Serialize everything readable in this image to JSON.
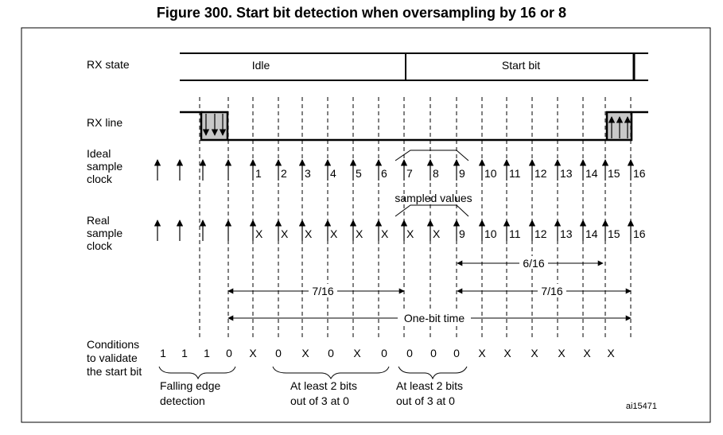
{
  "title": "Figure 300. Start bit detection when oversampling by 16 or 8",
  "reference": "ai15471",
  "row_labels": {
    "rx_state": "RX state",
    "rx_line": "RX line",
    "ideal_clock": [
      "Ideal",
      "sample",
      "clock"
    ],
    "real_clock": [
      "Real",
      "sample",
      "clock"
    ],
    "conditions": [
      "Conditions",
      "to validate",
      "the start bit"
    ]
  },
  "rx_state": {
    "idle": "Idle",
    "start_bit": "Start bit"
  },
  "ideal_ticks": [
    "1",
    "2",
    "3",
    "4",
    "5",
    "6",
    "7",
    "8",
    "9",
    "10",
    "11",
    "12",
    "13",
    "14",
    "15",
    "16"
  ],
  "real_ticks": [
    "X",
    "X",
    "X",
    "X",
    "X",
    "X",
    "X",
    "X",
    "9",
    "10",
    "11",
    "12",
    "13",
    "14",
    "15",
    "16"
  ],
  "sampled_values_label": "sampled values",
  "measurements": {
    "six_sixteenths": "6/16",
    "seven_sixteenths": "7/16",
    "one_bit_time": "One-bit time"
  },
  "condition_values": [
    "1",
    "1",
    "1",
    "0",
    "X",
    "0",
    "X",
    "0",
    "X",
    "0",
    "0",
    "0",
    "0",
    "X",
    "X",
    "X",
    "X",
    "X",
    "X"
  ],
  "notes": {
    "falling_edge": [
      "Falling edge",
      "detection"
    ],
    "at_least_a": [
      "At least 2 bits",
      "out of 3 at 0"
    ],
    "at_least_b": [
      "At least 2 bits",
      "out of 3 at 0"
    ]
  }
}
